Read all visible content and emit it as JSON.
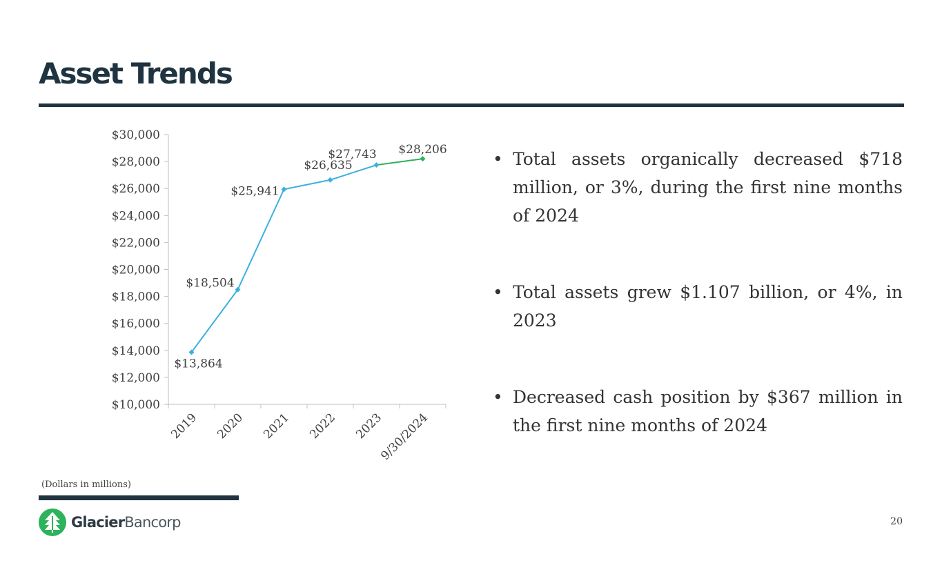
{
  "slide": {
    "title": "Asset Trends",
    "footnote": "(Dollars in millions)",
    "page_number": "20"
  },
  "brand": {
    "name_bold": "Glacier",
    "name_light": "Bancorp",
    "logo_icon": "tree-icon"
  },
  "bullets": [
    "Total assets organically decreased $718 million, or 3%, during the first nine months of 2024",
    "Total assets grew $1.107 billion, or 4%, in 2023",
    "Decreased cash position by $367 million in the first nine months of 2024"
  ],
  "colors": {
    "title": "#1f3340",
    "series_main": "#3bb0e0",
    "series_latest": "#2db35c",
    "logo_green": "#2db35c",
    "axis": "#bfbfbf",
    "text": "#404040"
  },
  "chart_data": {
    "type": "line",
    "title": "",
    "xlabel": "",
    "ylabel": "",
    "categories": [
      "2019",
      "2020",
      "2021",
      "2022",
      "2023",
      "9/30/2024"
    ],
    "values": [
      13864,
      18504,
      25941,
      26635,
      27743,
      28206
    ],
    "data_labels": [
      "$13,864",
      "$18,504",
      "$25,941",
      "$26,635",
      "$27,743",
      "$28,206"
    ],
    "ylim": [
      10000,
      30000
    ],
    "yticks": [
      10000,
      12000,
      14000,
      16000,
      18000,
      20000,
      22000,
      24000,
      26000,
      28000,
      30000
    ],
    "ytick_labels": [
      "$10,000",
      "$12,000",
      "$14,000",
      "$16,000",
      "$18,000",
      "$20,000",
      "$22,000",
      "$24,000",
      "$26,000",
      "$28,000",
      "$30,000"
    ],
    "grid": false,
    "legend": "none"
  }
}
